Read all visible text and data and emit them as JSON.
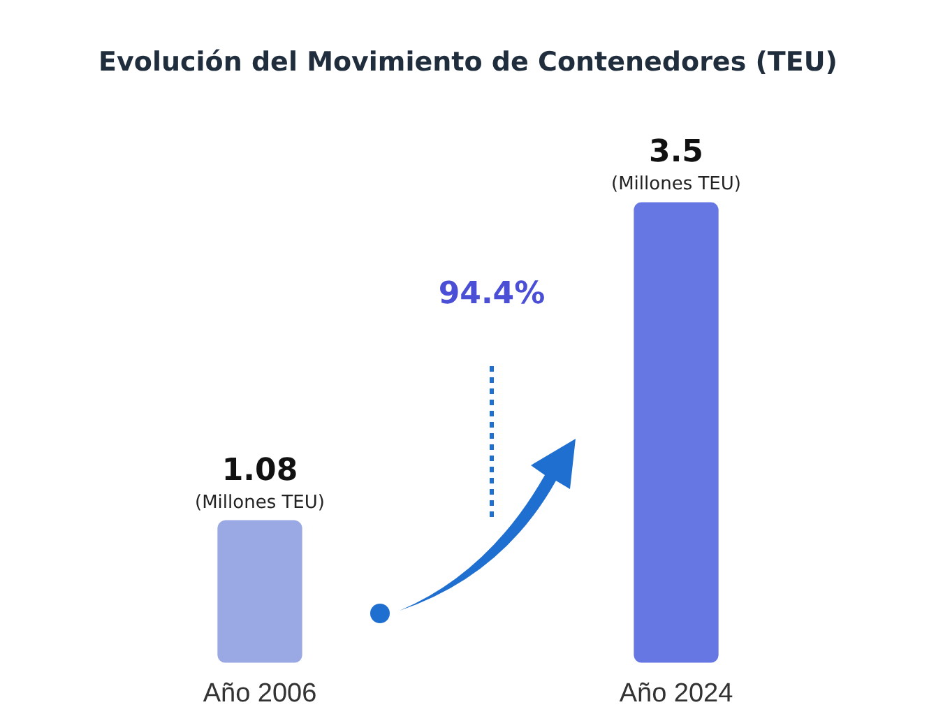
{
  "chart_data": {
    "type": "bar",
    "title": "Evolución del Movimiento de Contenedores (TEU)",
    "categories": [
      "Año 2006",
      "Año 2024"
    ],
    "values": [
      1.08,
      3.5
    ],
    "colors": [
      "#9aa8e4",
      "#6677e3"
    ],
    "data_labels": true,
    "grid": false,
    "legend": false,
    "annotations": [
      {
        "text": "(Millones TEU)",
        "x": "Año 2006",
        "y": 1.08
      },
      {
        "text": "(Millones TEU)",
        "x": "Año 2024",
        "y": 3.5
      },
      "94.4%"
    ]
  }
}
